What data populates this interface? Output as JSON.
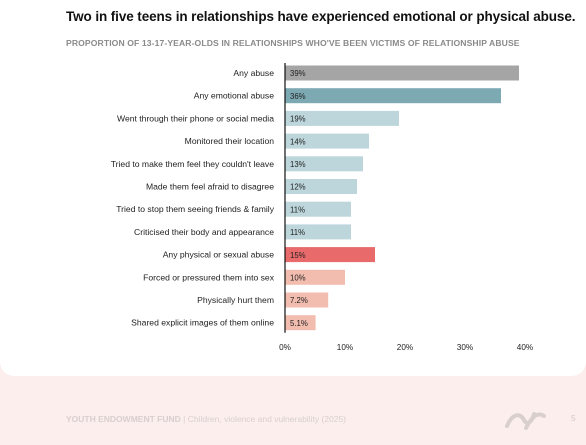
{
  "header": {
    "title": "Two in five teens in relationships have experienced emotional or physical abuse.",
    "subtitle": "PROPORTION OF 13-17-YEAR-OLDS IN RELATIONSHIPS WHO'VE BEEN VICTIMS OF RELATIONSHIP ABUSE"
  },
  "chart_data": {
    "type": "bar",
    "orientation": "horizontal",
    "title": "Two in five teens in relationships have experienced emotional or physical abuse.",
    "subtitle": "PROPORTION OF 13-17-YEAR-OLDS IN RELATIONSHIPS WHO'VE BEEN VICTIMS OF RELATIONSHIP ABUSE",
    "categories": [
      "Any abuse",
      "Any emotional abuse",
      "Went through their phone or social media",
      "Monitored their location",
      "Tried to make them feel they couldn't leave",
      "Made them feel afraid to disagree",
      "Tried to stop them seeing friends & family",
      "Criticised their body and appearance",
      "Any physical or sexual abuse",
      "Forced or pressured them into sex",
      "Physically hurt them",
      "Shared explicit images of them online"
    ],
    "values": [
      39,
      36,
      19,
      14,
      13,
      12,
      11,
      11,
      15,
      10,
      7.2,
      5.1
    ],
    "value_labels": [
      "39%",
      "36%",
      "19%",
      "14%",
      "13%",
      "12%",
      "11%",
      "11%",
      "15%",
      "10%",
      "7.2%",
      "5.1%"
    ],
    "colors": [
      "#a5a5a5",
      "#7da9b3",
      "#bcd6db",
      "#bcd6db",
      "#bcd6db",
      "#bcd6db",
      "#bcd6db",
      "#bcd6db",
      "#e96a6a",
      "#f2bcae",
      "#f2bcae",
      "#f2bcae"
    ],
    "xlim": [
      0,
      40
    ],
    "xticks": [
      "0%",
      "10%",
      "20%",
      "30%",
      "40%"
    ],
    "xtick_values": [
      0,
      10,
      20,
      30,
      40
    ],
    "grid": false,
    "legend": "none"
  },
  "footer": {
    "org": "YOUTH ENDOWMENT FUND",
    "separator": "|",
    "publication": "Children, violence and vulnerability (2025)",
    "page": "5"
  }
}
